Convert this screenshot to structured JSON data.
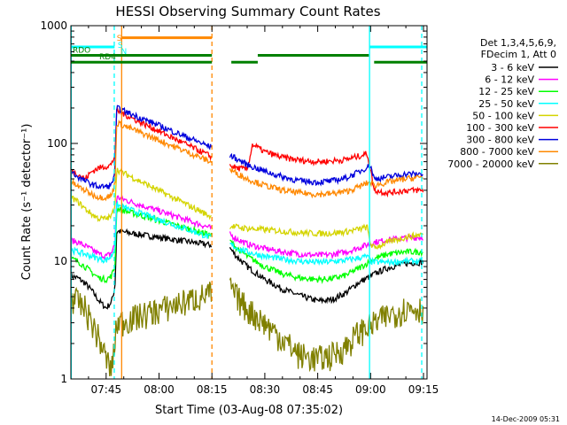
{
  "chart_data": {
    "type": "line",
    "title": "HESSI Observing Summary Count Rates",
    "xlabel": "Start Time (03-Aug-08 07:35:02)",
    "ylabel": "Count Rate (s⁻¹ detector⁻¹)",
    "yscale": "log",
    "ylim": [
      1,
      1000
    ],
    "xlim_minutes": [
      0,
      101
    ],
    "x_ticks": [
      {
        "t": 10,
        "label": "07:45"
      },
      {
        "t": 25,
        "label": "08:00"
      },
      {
        "t": 40,
        "label": "08:15"
      },
      {
        "t": 55,
        "label": "08:30"
      },
      {
        "t": 70,
        "label": "08:45"
      },
      {
        "t": 85,
        "label": "09:00"
      },
      {
        "t": 100,
        "label": "09:15"
      }
    ],
    "y_ticks": [
      {
        "v": 1,
        "label": "1"
      },
      {
        "v": 10,
        "label": "10"
      },
      {
        "v": 100,
        "label": "100"
      },
      {
        "v": 1000,
        "label": "1000"
      }
    ],
    "legend": {
      "placement": "right",
      "header": [
        "Det 1,3,4,5,6,9,",
        "FDecim 1, Att 0"
      ]
    },
    "gaps": [
      [
        40,
        45
      ]
    ],
    "series": [
      {
        "name": "3 - 6 keV",
        "color": "#000000",
        "x": [
          0,
          2,
          4,
          6,
          8,
          10,
          11.5,
          12.5,
          13,
          45,
          47,
          50,
          55,
          60,
          65,
          70,
          74,
          78,
          81,
          84,
          85,
          86,
          90,
          95,
          100
        ],
        "y": [
          7.5,
          7.2,
          6.5,
          5.6,
          4.6,
          4.0,
          4.5,
          6,
          18,
          13,
          11,
          9,
          7,
          5.8,
          5.1,
          4.6,
          4.7,
          5.4,
          6.4,
          7.2,
          7.4,
          7.8,
          8.8,
          9.6,
          9.8
        ]
      },
      {
        "name": "6 - 12 keV",
        "color": "#ff00ff",
        "x": [
          0,
          2,
          4,
          6,
          8,
          10,
          11.5,
          12.5,
          13,
          45,
          47,
          50,
          55,
          60,
          65,
          70,
          74,
          78,
          81,
          84,
          85,
          86,
          90,
          95,
          100
        ],
        "y": [
          15,
          14.5,
          13.5,
          12.5,
          11.5,
          11,
          11.8,
          14,
          35,
          17,
          15.5,
          14,
          12.8,
          12,
          11.5,
          11.2,
          11.4,
          12,
          12.8,
          13.8,
          14,
          14.5,
          15.2,
          15.8,
          16
        ]
      },
      {
        "name": "12 - 25 keV",
        "color": "#00ff00",
        "x": [
          0,
          2,
          4,
          6,
          8,
          10,
          11.5,
          12.5,
          13,
          45,
          47,
          50,
          55,
          60,
          65,
          70,
          74,
          78,
          81,
          84,
          85,
          86,
          90,
          95,
          100
        ],
        "y": [
          10.5,
          10,
          9,
          8,
          7.2,
          7,
          7.5,
          9,
          28,
          15,
          13,
          11,
          9,
          7.8,
          7.2,
          7,
          7.1,
          7.6,
          8.5,
          9.6,
          10,
          10.5,
          11.5,
          12,
          12
        ]
      },
      {
        "name": "25 - 50 keV",
        "color": "#00ffff",
        "x": [
          0,
          2,
          4,
          6,
          8,
          10,
          11.5,
          12.5,
          13,
          45,
          47,
          50,
          55,
          60,
          65,
          70,
          74,
          78,
          81,
          84,
          85,
          86,
          90,
          95,
          100
        ],
        "y": [
          12.5,
          12,
          11.5,
          11,
          10.5,
          10.2,
          11,
          13,
          30,
          14,
          13,
          12,
          11,
          10.4,
          10,
          9.8,
          9.9,
          10.2,
          10.6,
          11,
          10,
          9.8,
          9.8,
          10,
          10
        ]
      },
      {
        "name": "50 - 100 keV",
        "color": "#d4d400",
        "x": [
          0,
          2,
          4,
          6,
          8,
          10,
          11.5,
          12.5,
          13,
          45,
          47,
          50,
          55,
          60,
          65,
          70,
          74,
          78,
          81,
          84,
          85,
          86,
          90,
          95,
          100
        ],
        "y": [
          35,
          32,
          28,
          25,
          23,
          23,
          24,
          30,
          60,
          20,
          19.5,
          19,
          18.5,
          18,
          17.5,
          17.2,
          17.3,
          17.8,
          18.5,
          19.5,
          14,
          13,
          14.5,
          16,
          17
        ]
      },
      {
        "name": "100 - 300 keV",
        "color": "#ff0000",
        "x": [
          0,
          2,
          4,
          6,
          8,
          10,
          11.5,
          12.5,
          13,
          45,
          47,
          50,
          51.5,
          55,
          60,
          65,
          70,
          74,
          78,
          81,
          84,
          85,
          86,
          90,
          95,
          100
        ],
        "y": [
          60,
          55,
          50,
          58,
          62,
          64,
          66,
          80,
          190,
          65,
          62,
          60,
          98,
          85,
          76,
          72,
          70,
          71,
          73,
          77,
          82,
          60,
          40,
          38,
          40,
          40
        ]
      },
      {
        "name": "300 - 800 keV",
        "color": "#0000dd",
        "x": [
          0,
          2,
          4,
          6,
          8,
          10,
          11.5,
          12.5,
          13,
          45,
          47,
          50,
          55,
          60,
          65,
          70,
          74,
          78,
          81,
          84,
          85,
          86,
          90,
          95,
          100
        ],
        "y": [
          58,
          52,
          48,
          45,
          43,
          43,
          44,
          58,
          200,
          80,
          74,
          66,
          58,
          52,
          48,
          47,
          48,
          51,
          56,
          63,
          65,
          50,
          52,
          55,
          55
        ]
      },
      {
        "name": "800 - 7000 keV",
        "color": "#ff8800",
        "x": [
          0,
          2,
          4,
          6,
          8,
          10,
          11.5,
          12.5,
          13,
          45,
          47,
          50,
          55,
          60,
          65,
          70,
          74,
          78,
          81,
          84,
          85,
          86,
          90,
          95,
          100
        ],
        "y": [
          47,
          43,
          40,
          37,
          35,
          35,
          36,
          45,
          150,
          60,
          56,
          50,
          44,
          40,
          38,
          37,
          37.5,
          39,
          42,
          46,
          47,
          44,
          47,
          50,
          52
        ]
      },
      {
        "name": "7000 - 20000 keV",
        "color": "#808000",
        "x": [
          0,
          2,
          4,
          6,
          8,
          10,
          11.5,
          12.5,
          13,
          45,
          47,
          50,
          55,
          60,
          65,
          70,
          74,
          78,
          81,
          84,
          85,
          86,
          90,
          95,
          100
        ],
        "y": [
          5,
          4.5,
          4,
          3,
          2.2,
          1.5,
          1.2,
          2,
          3,
          6,
          5,
          4,
          3,
          2.2,
          1.6,
          1.5,
          1.6,
          1.9,
          2.4,
          2.8,
          2.8,
          3,
          3.5,
          4,
          4
        ]
      }
    ],
    "flag_lines": [
      {
        "label": "",
        "color": "#00ffff",
        "segments": [
          [
            0,
            12.4
          ],
          [
            84.8,
            101
          ]
        ],
        "level": 660
      },
      {
        "label": "",
        "color": "#ff8800",
        "segments": [
          [
            14.2,
            40
          ]
        ],
        "level": 790
      },
      {
        "label": "RDO",
        "color": "#008000",
        "segments": [
          [
            0,
            40
          ],
          [
            53,
            84.5
          ]
        ],
        "level": 560
      },
      {
        "label": "RD4",
        "color": "#008000",
        "segments": [
          [
            0,
            40
          ],
          [
            45.5,
            53
          ],
          [
            86,
            101
          ]
        ],
        "level": 490
      }
    ],
    "flag_letters": [
      {
        "text": "S",
        "color": "#ff8800",
        "t": 13.0
      },
      {
        "text": "S",
        "color": "#00ffff",
        "t": 13.3
      },
      {
        "text": "N",
        "color": "#00ffff",
        "t": 14.2
      }
    ],
    "vertical_markers": [
      {
        "t": 0.1,
        "color": "#00ffff",
        "style": "solid"
      },
      {
        "t": 12.3,
        "color": "#00ffff",
        "style": "dashed"
      },
      {
        "t": 14.4,
        "color": "#ff8800",
        "style": "solid"
      },
      {
        "t": 40,
        "color": "#ff8800",
        "style": "dashed"
      },
      {
        "t": 84.7,
        "color": "#00ffff",
        "style": "solid"
      },
      {
        "t": 99.5,
        "color": "#00ffff",
        "style": "dashed"
      }
    ],
    "footer_timestamp": "14-Dec-2009 05:31"
  }
}
